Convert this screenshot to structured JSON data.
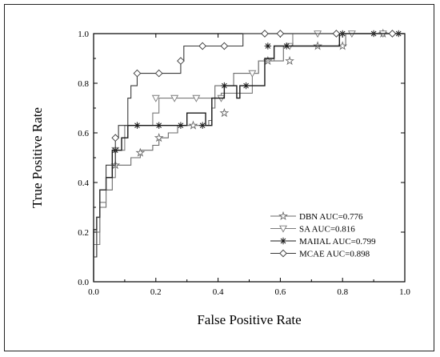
{
  "chart_data": {
    "type": "line",
    "title": "",
    "xlabel": "False Positive Rate",
    "ylabel": "True Positive Rate",
    "xlim": [
      0.0,
      1.0
    ],
    "ylim": [
      0.0,
      1.0
    ],
    "xticks": [
      "0.0",
      "0.2",
      "0.4",
      "0.6",
      "0.8",
      "1.0"
    ],
    "yticks": [
      "0.0",
      "0.2",
      "0.4",
      "0.6",
      "0.8",
      "1.0"
    ],
    "grid": false,
    "legend_position": "bottom-right",
    "series": [
      {
        "name": "DBN AUC=0.776",
        "marker": "star",
        "color": "#6a6a6a",
        "points": [
          [
            0,
            0
          ],
          [
            0,
            0.1
          ],
          [
            0.01,
            0.1
          ],
          [
            0.01,
            0.2
          ],
          [
            0.02,
            0.2
          ],
          [
            0.02,
            0.3
          ],
          [
            0.04,
            0.3
          ],
          [
            0.04,
            0.37
          ],
          [
            0.06,
            0.37
          ],
          [
            0.06,
            0.47
          ],
          [
            0.12,
            0.47
          ],
          [
            0.12,
            0.5
          ],
          [
            0.15,
            0.5
          ],
          [
            0.15,
            0.53
          ],
          [
            0.19,
            0.53
          ],
          [
            0.19,
            0.55
          ],
          [
            0.21,
            0.55
          ],
          [
            0.21,
            0.58
          ],
          [
            0.24,
            0.58
          ],
          [
            0.24,
            0.6
          ],
          [
            0.27,
            0.6
          ],
          [
            0.27,
            0.63
          ],
          [
            0.37,
            0.63
          ],
          [
            0.37,
            0.65
          ],
          [
            0.38,
            0.65
          ],
          [
            0.38,
            0.7
          ],
          [
            0.39,
            0.7
          ],
          [
            0.39,
            0.79
          ],
          [
            0.45,
            0.79
          ],
          [
            0.45,
            0.84
          ],
          [
            0.53,
            0.84
          ],
          [
            0.53,
            0.89
          ],
          [
            0.61,
            0.89
          ],
          [
            0.61,
            0.95
          ],
          [
            0.81,
            0.95
          ],
          [
            0.81,
            1.0
          ],
          [
            1.0,
            1.0
          ]
        ]
      },
      {
        "name": "SA AUC=0.816",
        "marker": "triangle-down",
        "color": "#7a7a7a",
        "points": [
          [
            0,
            0
          ],
          [
            0,
            0.15
          ],
          [
            0.02,
            0.15
          ],
          [
            0.02,
            0.32
          ],
          [
            0.04,
            0.32
          ],
          [
            0.04,
            0.42
          ],
          [
            0.07,
            0.42
          ],
          [
            0.07,
            0.53
          ],
          [
            0.1,
            0.53
          ],
          [
            0.1,
            0.63
          ],
          [
            0.19,
            0.63
          ],
          [
            0.19,
            0.68
          ],
          [
            0.21,
            0.68
          ],
          [
            0.21,
            0.74
          ],
          [
            0.41,
            0.74
          ],
          [
            0.41,
            0.76
          ],
          [
            0.51,
            0.76
          ],
          [
            0.51,
            0.84
          ],
          [
            0.53,
            0.84
          ],
          [
            0.53,
            0.89
          ],
          [
            0.58,
            0.89
          ],
          [
            0.58,
            0.95
          ],
          [
            0.64,
            0.95
          ],
          [
            0.64,
            1.0
          ],
          [
            1.0,
            1.0
          ]
        ]
      },
      {
        "name": "MAIIAL AUC=0.799",
        "marker": "asterisk",
        "color": "#1a1a1a",
        "points": [
          [
            0,
            0
          ],
          [
            0,
            0.21
          ],
          [
            0.01,
            0.21
          ],
          [
            0.01,
            0.26
          ],
          [
            0.02,
            0.26
          ],
          [
            0.02,
            0.37
          ],
          [
            0.04,
            0.37
          ],
          [
            0.04,
            0.42
          ],
          [
            0.06,
            0.42
          ],
          [
            0.06,
            0.53
          ],
          [
            0.09,
            0.53
          ],
          [
            0.09,
            0.58
          ],
          [
            0.11,
            0.58
          ],
          [
            0.11,
            0.63
          ],
          [
            0.3,
            0.63
          ],
          [
            0.3,
            0.68
          ],
          [
            0.36,
            0.68
          ],
          [
            0.36,
            0.63
          ],
          [
            0.38,
            0.63
          ],
          [
            0.38,
            0.74
          ],
          [
            0.42,
            0.74
          ],
          [
            0.42,
            0.79
          ],
          [
            0.46,
            0.79
          ],
          [
            0.46,
            0.74
          ],
          [
            0.47,
            0.74
          ],
          [
            0.47,
            0.79
          ],
          [
            0.55,
            0.79
          ],
          [
            0.55,
            0.9
          ],
          [
            0.58,
            0.9
          ],
          [
            0.58,
            0.95
          ],
          [
            0.79,
            0.95
          ],
          [
            0.79,
            1.0
          ],
          [
            1.0,
            1.0
          ]
        ]
      },
      {
        "name": "MCAE AUC=0.898",
        "marker": "diamond",
        "color": "#3a3a3a",
        "points": [
          [
            0,
            0
          ],
          [
            0,
            0.1
          ],
          [
            0.01,
            0.1
          ],
          [
            0.01,
            0.26
          ],
          [
            0.02,
            0.26
          ],
          [
            0.02,
            0.37
          ],
          [
            0.04,
            0.37
          ],
          [
            0.04,
            0.47
          ],
          [
            0.07,
            0.47
          ],
          [
            0.07,
            0.58
          ],
          [
            0.08,
            0.58
          ],
          [
            0.08,
            0.63
          ],
          [
            0.11,
            0.63
          ],
          [
            0.11,
            0.74
          ],
          [
            0.12,
            0.74
          ],
          [
            0.12,
            0.79
          ],
          [
            0.14,
            0.79
          ],
          [
            0.14,
            0.84
          ],
          [
            0.28,
            0.84
          ],
          [
            0.28,
            0.89
          ],
          [
            0.29,
            0.89
          ],
          [
            0.29,
            0.95
          ],
          [
            0.48,
            0.95
          ],
          [
            0.48,
            1.0
          ],
          [
            1.0,
            1.0
          ]
        ]
      }
    ],
    "marker_points": [
      [
        [
          0.07,
          0.47
        ],
        [
          0.15,
          0.52
        ],
        [
          0.21,
          0.58
        ],
        [
          0.32,
          0.63
        ],
        [
          0.42,
          0.68
        ],
        [
          0.56,
          0.89
        ],
        [
          0.63,
          0.89
        ],
        [
          0.72,
          0.95
        ],
        [
          0.8,
          0.95
        ],
        [
          0.93,
          1.0
        ]
      ],
      [
        [
          0.07,
          0.53
        ],
        [
          0.2,
          0.74
        ],
        [
          0.26,
          0.74
        ],
        [
          0.33,
          0.74
        ],
        [
          0.41,
          0.74
        ],
        [
          0.51,
          0.84
        ],
        [
          0.63,
          0.95
        ],
        [
          0.72,
          1.0
        ],
        [
          0.83,
          1.0
        ],
        [
          0.93,
          1.0
        ]
      ],
      [
        [
          0.07,
          0.53
        ],
        [
          0.14,
          0.63
        ],
        [
          0.21,
          0.63
        ],
        [
          0.28,
          0.63
        ],
        [
          0.35,
          0.63
        ],
        [
          0.42,
          0.79
        ],
        [
          0.49,
          0.79
        ],
        [
          0.56,
          0.95
        ],
        [
          0.62,
          0.95
        ],
        [
          0.8,
          1.0
        ],
        [
          0.9,
          1.0
        ],
        [
          0.98,
          1.0
        ]
      ],
      [
        [
          0.07,
          0.58
        ],
        [
          0.14,
          0.84
        ],
        [
          0.21,
          0.84
        ],
        [
          0.28,
          0.89
        ],
        [
          0.35,
          0.95
        ],
        [
          0.42,
          0.95
        ],
        [
          0.55,
          1.0
        ],
        [
          0.6,
          1.0
        ],
        [
          0.78,
          1.0
        ],
        [
          0.96,
          1.0
        ]
      ]
    ]
  }
}
